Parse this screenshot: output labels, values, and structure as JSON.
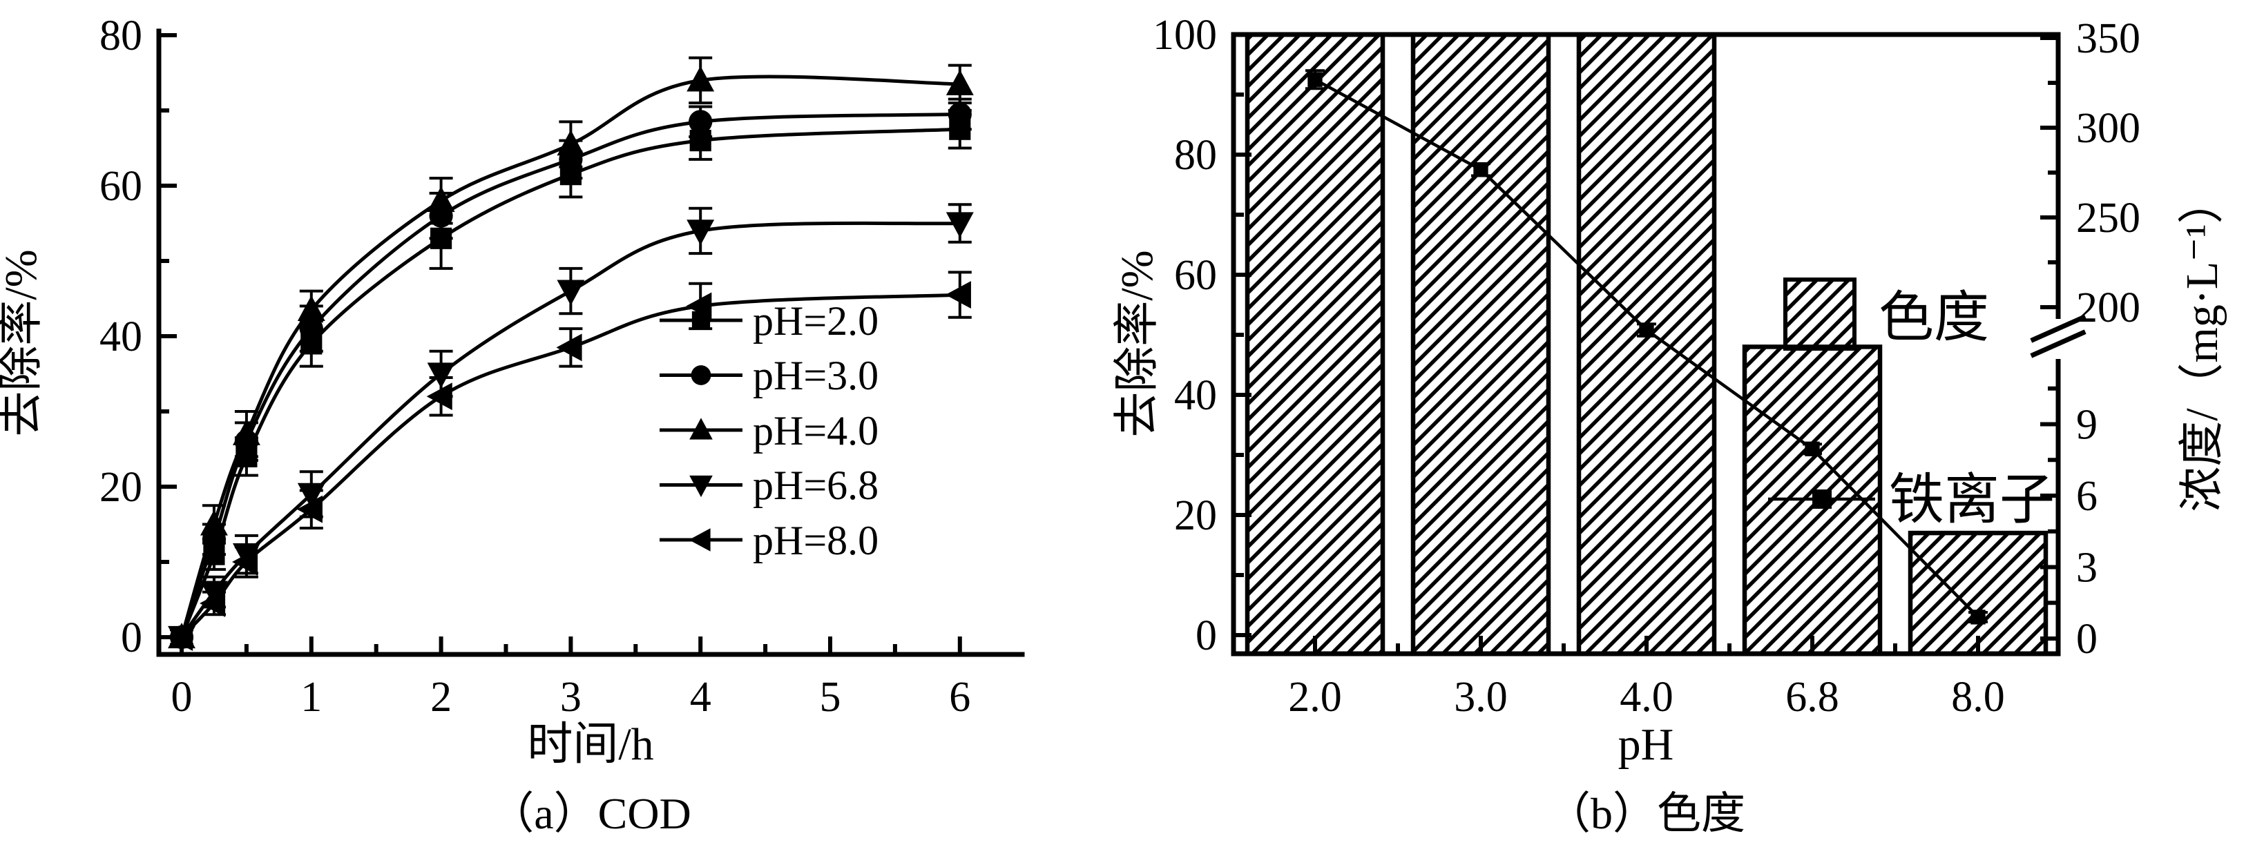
{
  "figure": {
    "background": "#ffffff",
    "ink": "#000000",
    "panels": [
      "a",
      "b"
    ]
  },
  "chart_data": [
    {
      "id": "a",
      "type": "line",
      "caption": "（a）COD",
      "xlabel": "时间/h",
      "ylabel": "去除率/%",
      "xlim": [
        0,
        6
      ],
      "ylim": [
        0,
        80
      ],
      "grid": false,
      "xtick_labels": [
        "0",
        "1",
        "2",
        "3",
        "4",
        "5",
        "6"
      ],
      "ytick_labels": [
        "0",
        "20",
        "40",
        "60",
        "80"
      ],
      "x": [
        0,
        0.25,
        0.5,
        1,
        2,
        3,
        4,
        6
      ],
      "series": [
        {
          "name": "pH=2.0",
          "marker": "square",
          "values": [
            0,
            11,
            24,
            39,
            53,
            61.5,
            66,
            67.5
          ],
          "errors": [
            1,
            2,
            2.5,
            3,
            4,
            3,
            2.5,
            2.5
          ]
        },
        {
          "name": "pH=3.0",
          "marker": "circle",
          "values": [
            0,
            13,
            26,
            41,
            56,
            63.5,
            68.5,
            69.5
          ],
          "errors": [
            1,
            2,
            2.5,
            3,
            3,
            2.5,
            2,
            2
          ]
        },
        {
          "name": "pH=4.0",
          "marker": "triangle-up",
          "values": [
            0,
            15,
            27,
            43.5,
            58,
            65.5,
            74,
            73.5
          ],
          "errors": [
            1,
            2.5,
            3,
            2.5,
            3,
            3,
            3,
            2.5
          ]
        },
        {
          "name": "pH=6.8",
          "marker": "triangle-down",
          "values": [
            0,
            6,
            11,
            19,
            35,
            46,
            54,
            55
          ],
          "errors": [
            1,
            2,
            2.5,
            3,
            3,
            3,
            3,
            2.5
          ]
        },
        {
          "name": "pH=8.0",
          "marker": "triangle-left",
          "values": [
            0,
            4.5,
            10,
            17,
            32,
            38.5,
            44,
            45.5
          ],
          "errors": [
            1,
            1.5,
            2,
            2.5,
            2.5,
            2.5,
            3,
            3
          ]
        }
      ],
      "legend": {
        "position": "inside-right",
        "entries": [
          "pH=2.0",
          "pH=3.0",
          "pH=4.0",
          "pH=6.8",
          "pH=8.0"
        ]
      }
    },
    {
      "id": "b",
      "type": "bar+line",
      "caption": "（b）色度",
      "xlabel": "pH",
      "ylabel_left": "去除率/%",
      "ylabel_right": "浓度/（mg·L⁻¹）",
      "categories": [
        "2.0",
        "3.0",
        "4.0",
        "6.8",
        "8.0"
      ],
      "left_axis": {
        "lim": [
          0,
          100
        ],
        "tick_labels": [
          "0",
          "20",
          "40",
          "60",
          "80",
          "100"
        ]
      },
      "right_axis": {
        "axis_break": true,
        "upper_tick_labels": [
          "350",
          "300",
          "250",
          "200"
        ],
        "lower_tick_labels": [
          "9",
          "6",
          "3",
          "0"
        ],
        "upper_range": [
          200,
          350
        ],
        "lower_range": [
          0,
          9
        ]
      },
      "bars": {
        "name": "色度",
        "hatch": "diagonal",
        "values": [
          100,
          100,
          100,
          48,
          17
        ]
      },
      "line": {
        "name": "铁离子",
        "marker": "square",
        "values_mg_per_L": [
          330,
          280,
          200,
          8,
          1
        ],
        "plot_pct": [
          92.5,
          77.5,
          50.8,
          31,
          3
        ],
        "errors_pct": [
          1.5,
          1,
          1,
          0.8,
          0.8
        ]
      }
    }
  ]
}
